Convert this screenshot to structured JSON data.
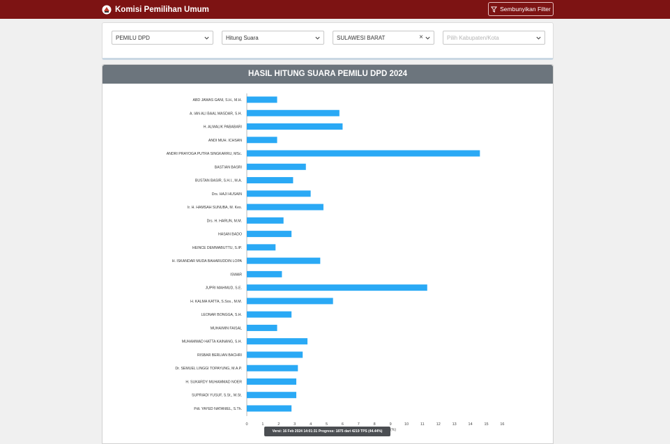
{
  "header": {
    "app_title": "Komisi Pemilihan Umum",
    "filter_toggle_label": "Sembunyikan Filter"
  },
  "filters": {
    "election_type": "PEMILU DPD",
    "count_type": "Hitung Suara",
    "province": "SULAWESI BARAT",
    "regency_placeholder": "Pilih Kabupaten/Kota"
  },
  "status": {
    "version_text": "Versi: 16 Feb 2024 14:01:31 Progress: 1875 dari 4219 TPS (44.44%)"
  },
  "colors": {
    "topbar": "#7d1313",
    "bar": "#2aa9f5",
    "chart_header": "#6c757d"
  },
  "chart_data": {
    "type": "bar",
    "orientation": "horizontal",
    "title": "HASIL HITUNG SUARA PEMILU DPD 2024",
    "x_unit_label": "(%)",
    "xlim": [
      0,
      16
    ],
    "x_ticks": [
      0,
      1,
      2,
      3,
      4,
      5,
      6,
      7,
      8,
      9,
      10,
      11,
      12,
      13,
      14,
      15,
      16
    ],
    "categories": [
      "ABD JAWAS GANI, S.H., M.H.",
      "A. IAN ALI BAAL MASDAR, S.H.",
      "H. ALMALIK PABABARI",
      "ANDI MUH. ICHSAN",
      "ANDRI PRAYOGA PUTRA SINGKARRU, MSc.",
      "BASTIAN BASRI",
      "BUSTAN BASIR, S.H.I., M.A.",
      "Drs. HAJI HUSAIN",
      "Ir. H. HAMSAH SUNUBA, M. Kes.",
      "Drs. H. HARUN, M.M.",
      "HASAN BADO",
      "HEINCE DEMMABUTTU, S.IP.",
      "H. ISKANDAR MUDA BAHARUDDIN LOPA",
      "ISWAR",
      "JUPRI MAHMUD, S.E.",
      "H. KALMA KATTA, S.Sos., M.M.",
      "LEONAR BONGGA, S.H.",
      "MUHAIMIN FAISAL",
      "MUHAMMAD HATTA KAINANG, S.H.",
      "RISBAR BERLIAN BACHRI",
      "Dr. SEMUEL LINGGI TOPAYUNG, M.A.P.",
      "H. SUKARDY MUHAMMAD NOER",
      "SUPRIADI YUSUF, S.St., M.St.",
      "Pdt. YAYED NATANIEL, S.Th."
    ],
    "values": [
      1.9,
      5.8,
      6.0,
      1.9,
      14.6,
      3.7,
      2.9,
      4.0,
      4.8,
      2.3,
      2.8,
      1.8,
      4.6,
      2.2,
      11.3,
      5.4,
      2.8,
      1.9,
      3.8,
      3.5,
      3.2,
      3.1,
      3.1,
      2.8
    ],
    "grid": false,
    "legend": "none"
  }
}
